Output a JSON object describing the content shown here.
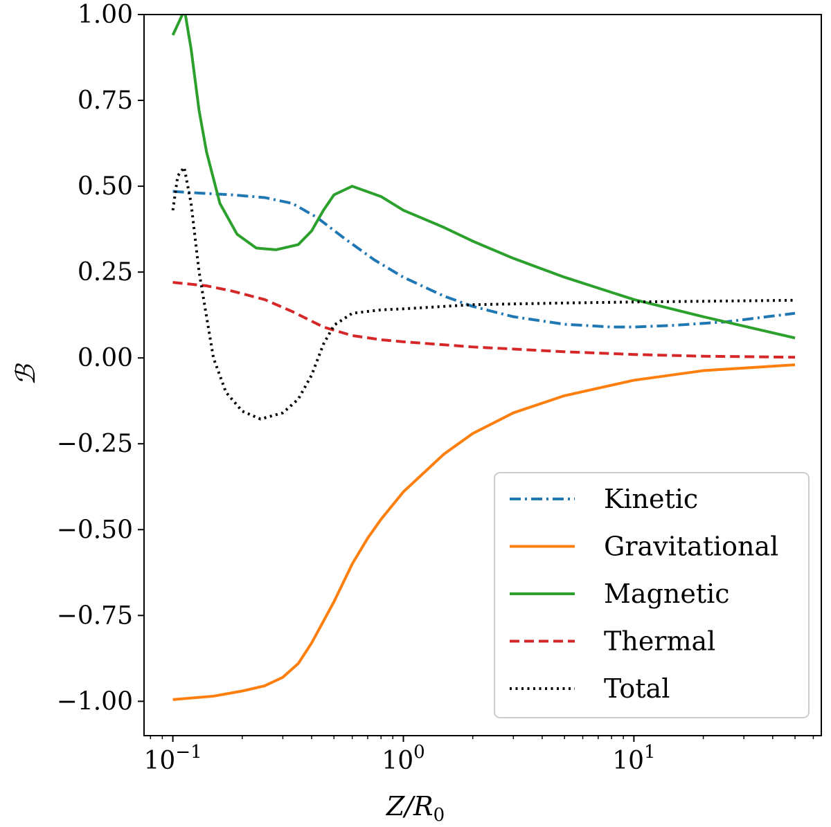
{
  "chart_data": {
    "type": "line",
    "xscale": "log",
    "xlim": [
      0.075,
      65
    ],
    "ylim": [
      -1.1,
      1.0
    ],
    "xlabel": "Z/R",
    "xlabel_sub": "0",
    "ylabel": "ℬ",
    "grid": false,
    "legend_position": "lower-right",
    "xticks": [
      {
        "value": 0.1,
        "base": "10",
        "exp": "−1"
      },
      {
        "value": 1,
        "base": "10",
        "exp": "0"
      },
      {
        "value": 10,
        "base": "10",
        "exp": "1"
      }
    ],
    "yticks": [
      {
        "value": 1.0,
        "label": "1.00"
      },
      {
        "value": 0.75,
        "label": "0.75"
      },
      {
        "value": 0.5,
        "label": "0.50"
      },
      {
        "value": 0.25,
        "label": "0.25"
      },
      {
        "value": 0.0,
        "label": "0.00"
      },
      {
        "value": -0.25,
        "label": "−0.25"
      },
      {
        "value": -0.5,
        "label": "−0.50"
      },
      {
        "value": -0.75,
        "label": "−0.75"
      },
      {
        "value": -1.0,
        "label": "−1.00"
      }
    ],
    "series": [
      {
        "name": "Kinetic",
        "color": "#1f77b4",
        "style": "dashdot",
        "points": [
          [
            0.1,
            0.485
          ],
          [
            0.13,
            0.48
          ],
          [
            0.18,
            0.475
          ],
          [
            0.25,
            0.467
          ],
          [
            0.33,
            0.45
          ],
          [
            0.42,
            0.41
          ],
          [
            0.55,
            0.35
          ],
          [
            0.75,
            0.285
          ],
          [
            1.0,
            0.235
          ],
          [
            1.5,
            0.18
          ],
          [
            2.0,
            0.15
          ],
          [
            3.0,
            0.12
          ],
          [
            5.0,
            0.098
          ],
          [
            8.0,
            0.09
          ],
          [
            10.0,
            0.09
          ],
          [
            15.0,
            0.095
          ],
          [
            25.0,
            0.105
          ],
          [
            40.0,
            0.122
          ],
          [
            50.0,
            0.13
          ]
        ]
      },
      {
        "name": "Gravitational",
        "color": "#ff7f0e",
        "style": "solid",
        "points": [
          [
            0.1,
            -0.995
          ],
          [
            0.15,
            -0.985
          ],
          [
            0.2,
            -0.97
          ],
          [
            0.25,
            -0.955
          ],
          [
            0.3,
            -0.93
          ],
          [
            0.35,
            -0.89
          ],
          [
            0.4,
            -0.83
          ],
          [
            0.5,
            -0.71
          ],
          [
            0.6,
            -0.6
          ],
          [
            0.7,
            -0.525
          ],
          [
            0.8,
            -0.47
          ],
          [
            1.0,
            -0.39
          ],
          [
            1.5,
            -0.28
          ],
          [
            2.0,
            -0.22
          ],
          [
            3.0,
            -0.16
          ],
          [
            5.0,
            -0.11
          ],
          [
            10.0,
            -0.065
          ],
          [
            20.0,
            -0.037
          ],
          [
            50.0,
            -0.02
          ]
        ]
      },
      {
        "name": "Magnetic",
        "color": "#2ca02c",
        "style": "solid",
        "points": [
          [
            0.1,
            0.94
          ],
          [
            0.11,
            1.0
          ],
          [
            0.112,
            1.02
          ],
          [
            0.12,
            0.9
          ],
          [
            0.13,
            0.72
          ],
          [
            0.14,
            0.6
          ],
          [
            0.16,
            0.45
          ],
          [
            0.19,
            0.36
          ],
          [
            0.23,
            0.32
          ],
          [
            0.28,
            0.315
          ],
          [
            0.35,
            0.33
          ],
          [
            0.4,
            0.37
          ],
          [
            0.45,
            0.43
          ],
          [
            0.5,
            0.475
          ],
          [
            0.6,
            0.5
          ],
          [
            0.8,
            0.47
          ],
          [
            1.0,
            0.43
          ],
          [
            1.5,
            0.38
          ],
          [
            2.0,
            0.34
          ],
          [
            3.0,
            0.29
          ],
          [
            5.0,
            0.235
          ],
          [
            10.0,
            0.17
          ],
          [
            20.0,
            0.12
          ],
          [
            50.0,
            0.058
          ]
        ]
      },
      {
        "name": "Thermal",
        "color": "#d62728",
        "style": "dashed",
        "points": [
          [
            0.1,
            0.22
          ],
          [
            0.14,
            0.21
          ],
          [
            0.18,
            0.195
          ],
          [
            0.25,
            0.17
          ],
          [
            0.33,
            0.135
          ],
          [
            0.45,
            0.09
          ],
          [
            0.6,
            0.065
          ],
          [
            0.8,
            0.053
          ],
          [
            1.0,
            0.047
          ],
          [
            2.0,
            0.032
          ],
          [
            5.0,
            0.018
          ],
          [
            10.0,
            0.01
          ],
          [
            20.0,
            0.005
          ],
          [
            50.0,
            0.002
          ]
        ]
      },
      {
        "name": "Total",
        "color": "#000000",
        "style": "dotted",
        "points": [
          [
            0.1,
            0.43
          ],
          [
            0.105,
            0.53
          ],
          [
            0.112,
            0.555
          ],
          [
            0.12,
            0.45
          ],
          [
            0.13,
            0.25
          ],
          [
            0.15,
            0.0
          ],
          [
            0.17,
            -0.1
          ],
          [
            0.2,
            -0.155
          ],
          [
            0.24,
            -0.178
          ],
          [
            0.3,
            -0.16
          ],
          [
            0.35,
            -0.12
          ],
          [
            0.4,
            -0.05
          ],
          [
            0.45,
            0.04
          ],
          [
            0.5,
            0.095
          ],
          [
            0.6,
            0.13
          ],
          [
            0.8,
            0.14
          ],
          [
            1.0,
            0.143
          ],
          [
            2.0,
            0.155
          ],
          [
            5.0,
            0.16
          ],
          [
            10.0,
            0.163
          ],
          [
            20.0,
            0.165
          ],
          [
            50.0,
            0.168
          ]
        ]
      }
    ]
  }
}
